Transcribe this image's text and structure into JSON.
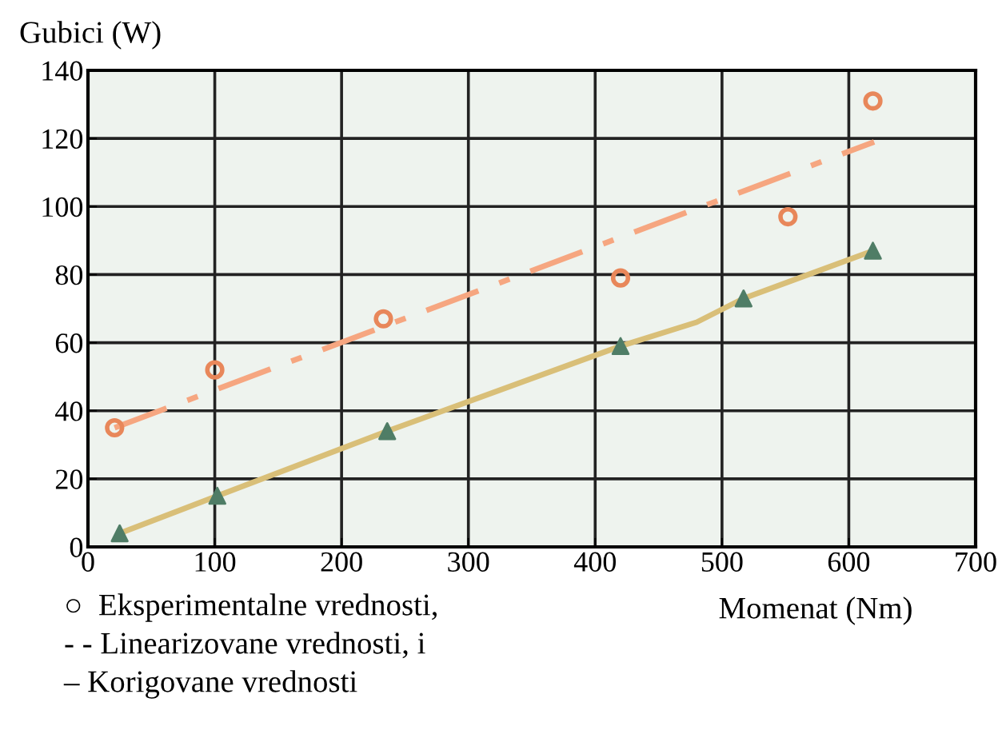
{
  "chart_data": {
    "type": "scatter",
    "ylabel": "Gubici (W)",
    "xlabel": "Momenat (Nm)",
    "xlim": [
      0,
      700
    ],
    "xticks": [
      0,
      100,
      200,
      300,
      400,
      500,
      600,
      700
    ],
    "ylim": [
      0,
      140
    ],
    "yticks": [
      0,
      20,
      40,
      60,
      80,
      100,
      120,
      140
    ],
    "grid": true,
    "legend": false,
    "series": [
      {
        "type": "line",
        "color": "#d9bf78",
        "line_style": "solid",
        "marker": "none",
        "x": [
          25,
          102,
          236,
          420,
          480,
          517,
          619
        ],
        "values": [
          4,
          15,
          34,
          59,
          66,
          73,
          87
        ]
      },
      {
        "type": "line",
        "color": "#f6a680",
        "line_style": "dashed",
        "marker": "none",
        "x": [
          21,
          620
        ],
        "values": [
          35,
          119
        ]
      },
      {
        "color": "#e8875a",
        "marker": "circle",
        "x": [
          21,
          100,
          233,
          420,
          552,
          619
        ],
        "values": [
          35,
          52,
          67,
          79,
          97,
          131
        ]
      },
      {
        "color": "#4f7d66",
        "marker": "triangle",
        "x": [
          25,
          102,
          236,
          420,
          517,
          619
        ],
        "values": [
          4,
          15,
          34,
          59,
          73,
          87
        ]
      }
    ],
    "annotations": [
      "○  Eksperimentalne vrednosti,",
      "- - Linearizovane vrednosti, i",
      "– Korigovane vrednosti"
    ]
  }
}
